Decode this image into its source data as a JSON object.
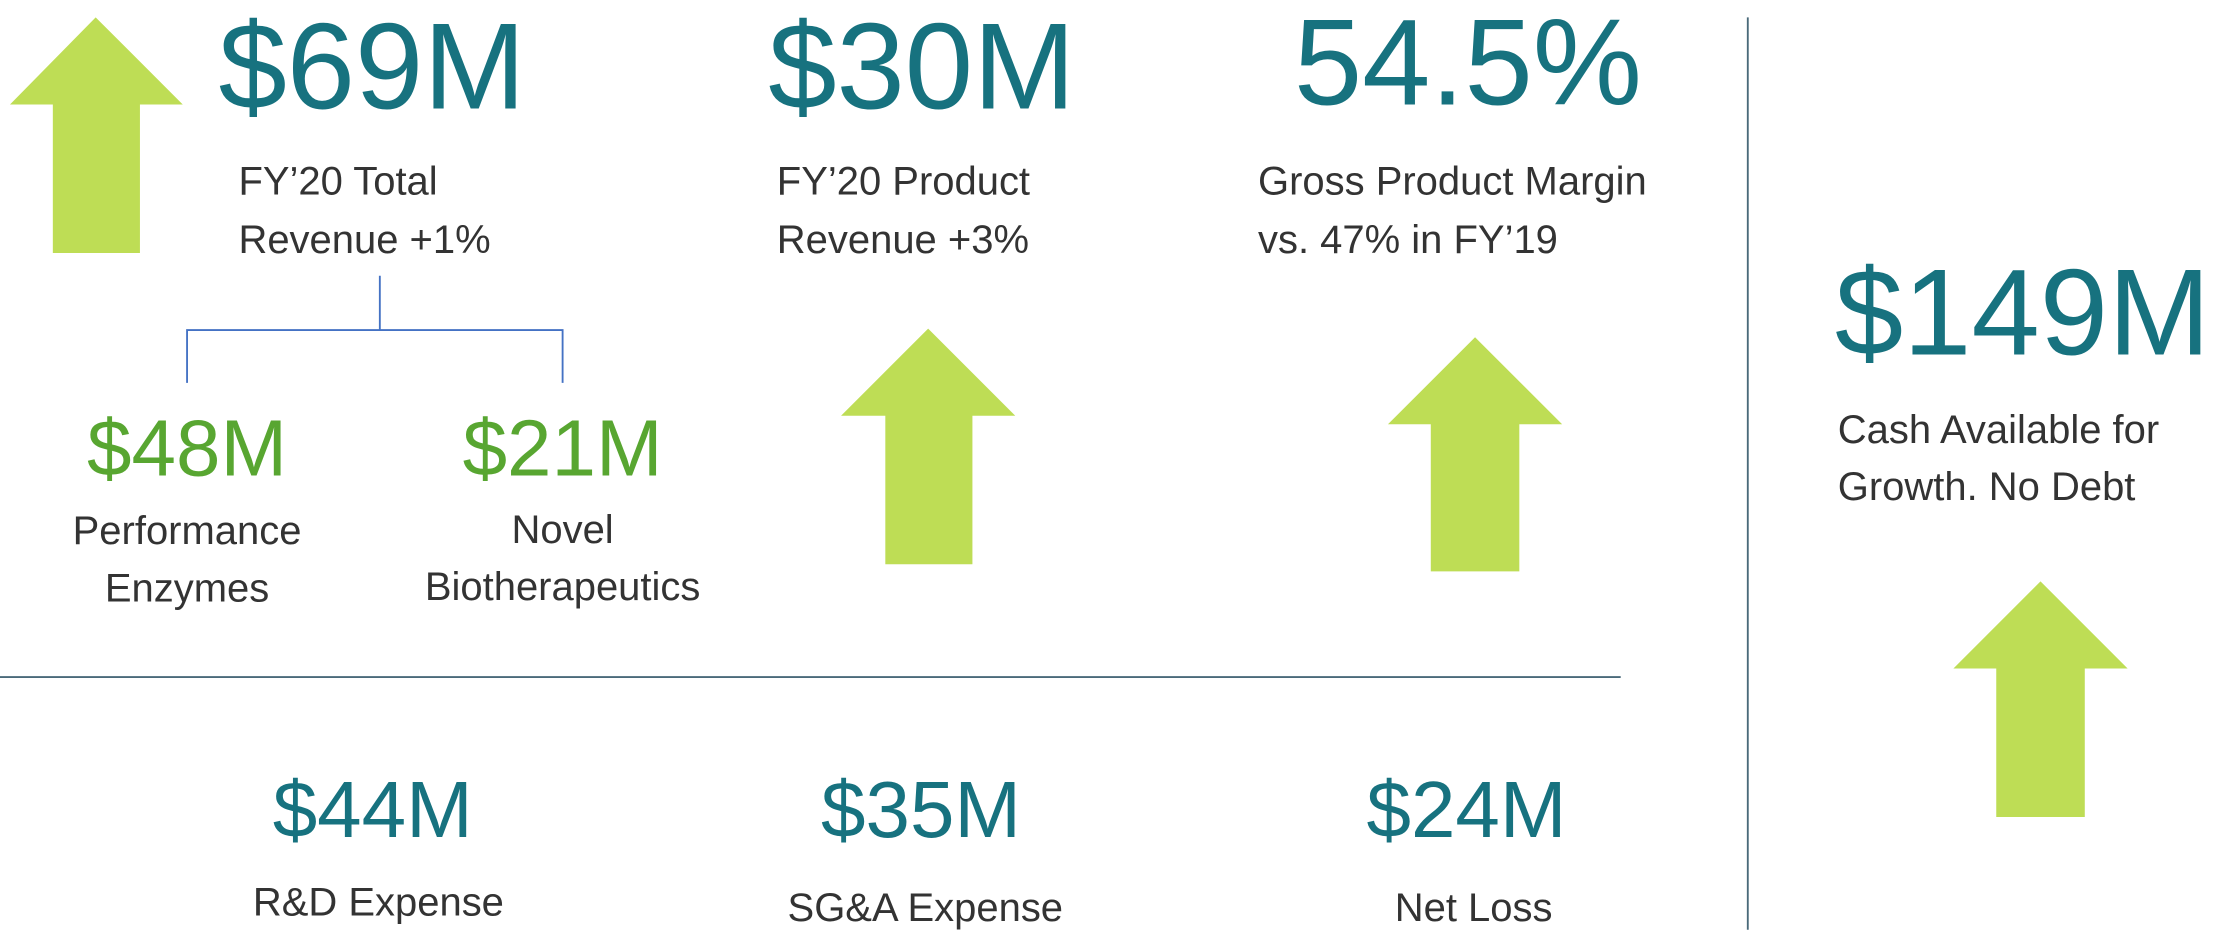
{
  "top_metrics": [
    {
      "value": "$69M",
      "label": [
        "FY’20 Total",
        "Revenue +1%"
      ]
    },
    {
      "value": "$30M",
      "label": [
        "FY’20 Product",
        "Revenue +3%"
      ]
    },
    {
      "value": "54.5%",
      "label": [
        "Gross Product Margin",
        "vs. 47% in FY’19"
      ]
    }
  ],
  "segments": [
    {
      "value": "$48M",
      "label": [
        "Performance",
        "Enzymes"
      ]
    },
    {
      "value": "$21M",
      "label": [
        "Novel",
        "Biotherapeutics"
      ]
    }
  ],
  "expenses": [
    {
      "value": "$44M",
      "label": "R&D Expense"
    },
    {
      "value": "$35M",
      "label": "SG&A Expense"
    },
    {
      "value": "$24M",
      "label": "Net Loss"
    }
  ],
  "cash": {
    "value": "$149M",
    "label": [
      "Cash Available for",
      "Growth. No Debt"
    ]
  }
}
